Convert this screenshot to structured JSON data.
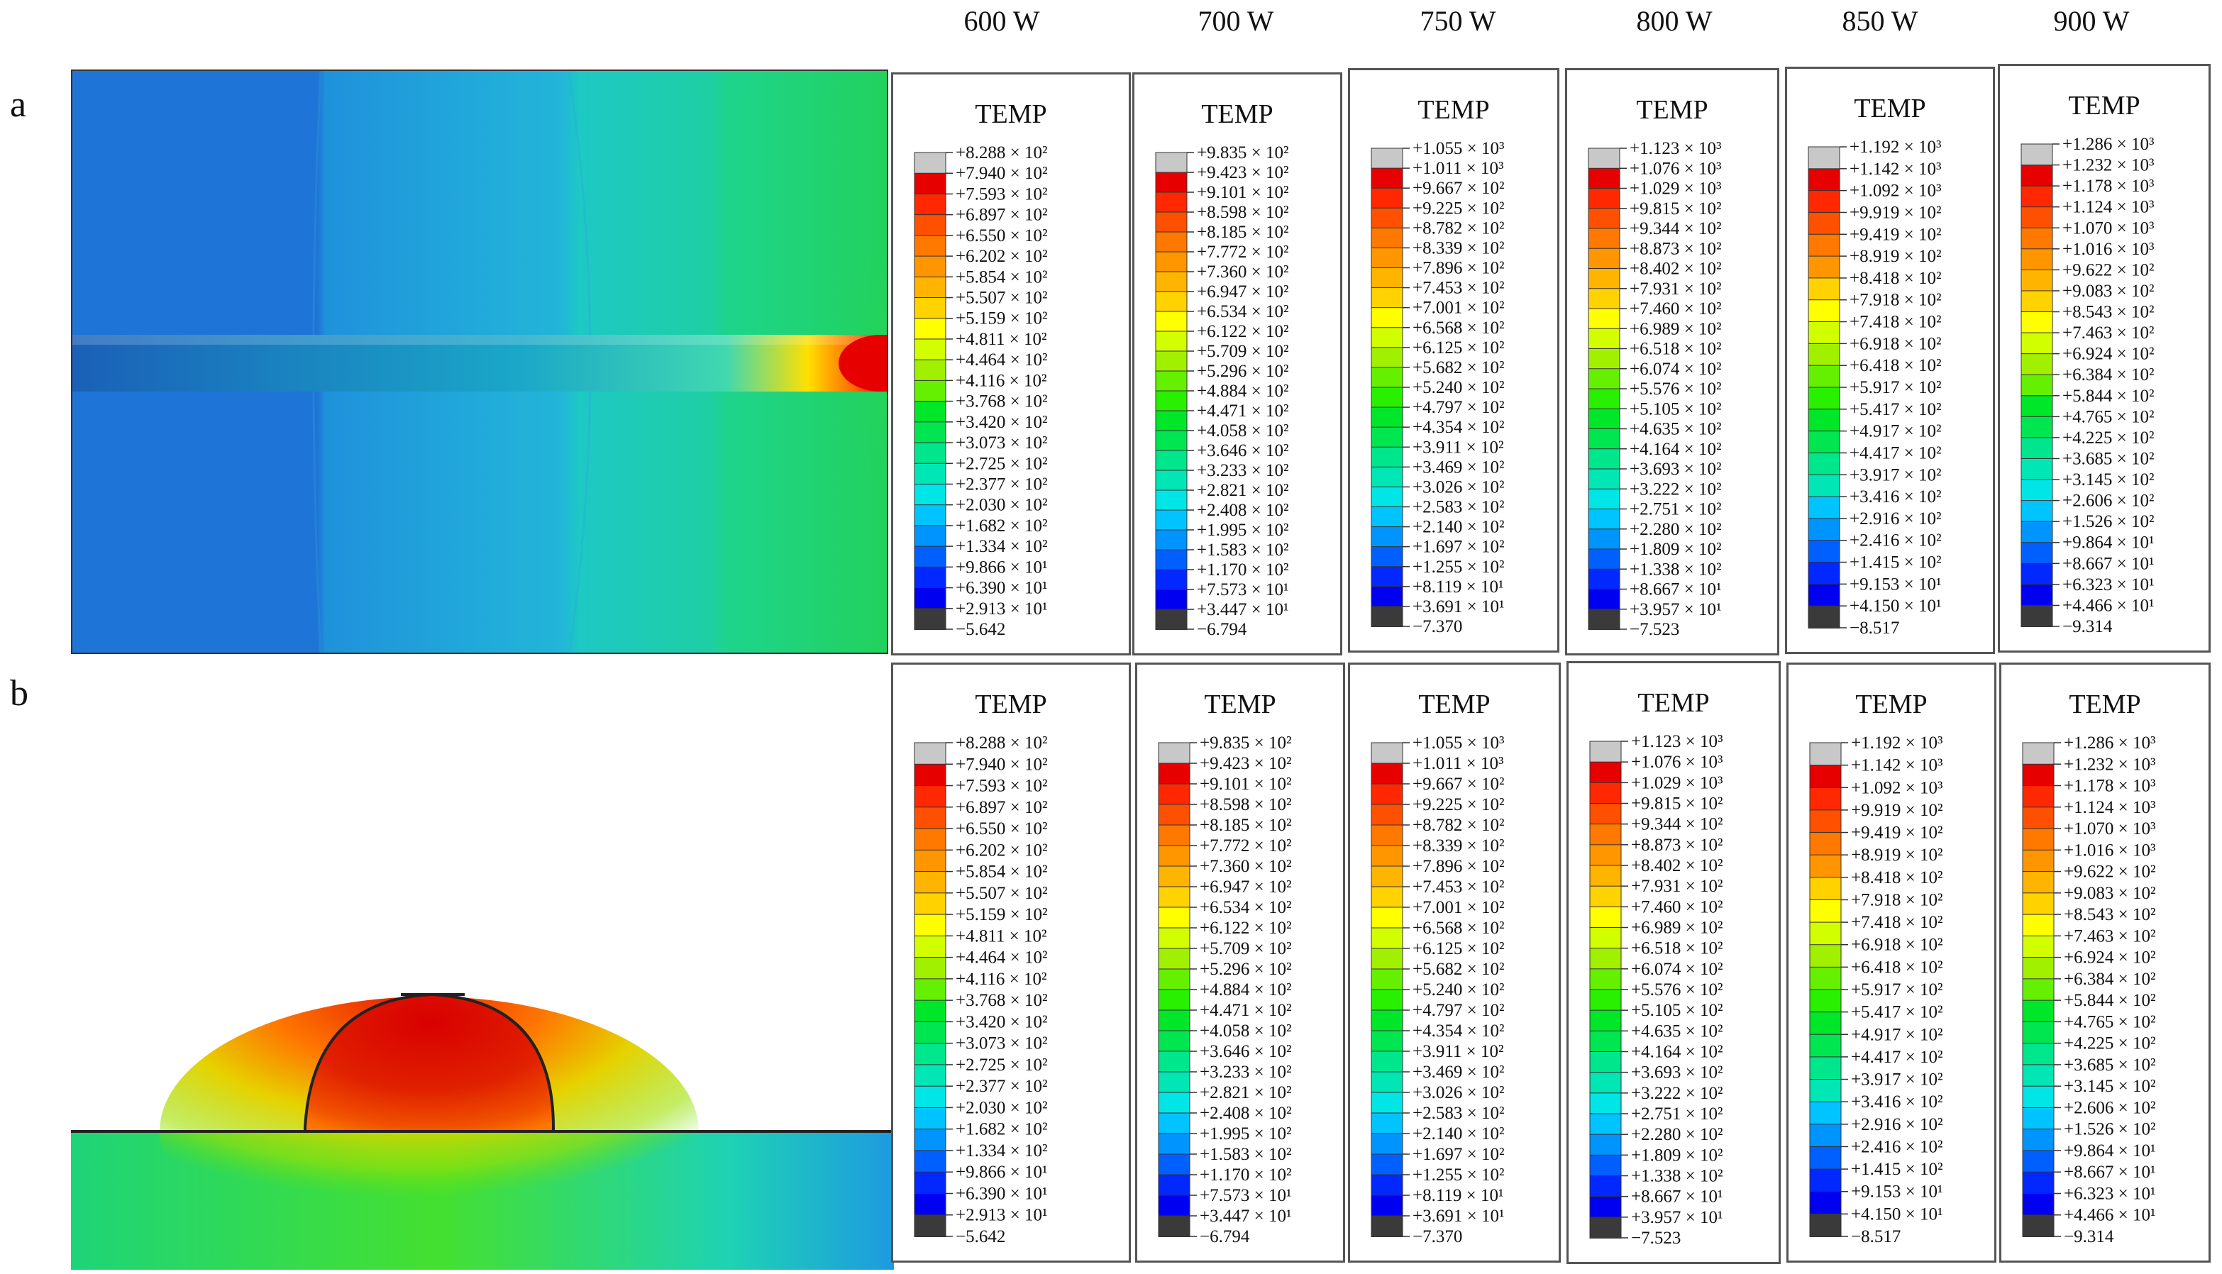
{
  "labels": {
    "row_a": "a",
    "row_b": "b"
  },
  "legend_title": "TEMP",
  "colors": [
    "#3a3a3a",
    "#0000f0",
    "#0028ff",
    "#0060ff",
    "#0094ff",
    "#00c4ff",
    "#00e6e6",
    "#00e6b4",
    "#00e68c",
    "#00e650",
    "#00e628",
    "#28f000",
    "#64f000",
    "#a0f000",
    "#d2ff00",
    "#ffff00",
    "#ffd200",
    "#ffb400",
    "#ff9600",
    "#ff7800",
    "#ff5000",
    "#ff2800",
    "#e60000",
    "#c8c8c8"
  ],
  "panels": [
    {
      "power": "600 W",
      "labels": [
        "+8.288 × 10²",
        "+7.940 × 10²",
        "+7.593 × 10²",
        "+6.897 × 10²",
        "+6.550 × 10²",
        "+6.202 × 10²",
        "+5.854 × 10²",
        "+5.507 × 10²",
        "+5.159 × 10²",
        "+4.811 × 10²",
        "+4.464 × 10²",
        "+4.116 × 10²",
        "+3.768 × 10²",
        "+3.420 × 10²",
        "+3.073 × 10²",
        "+2.725 × 10²",
        "+2.377 × 10²",
        "+2.030 × 10²",
        "+1.682 × 10²",
        "+1.334 × 10²",
        "+9.866 × 10¹",
        "+6.390 × 10¹",
        "+2.913 × 10¹",
        "−5.642"
      ]
    },
    {
      "power": "700 W",
      "labels": [
        "+9.835 × 10²",
        "+9.423 × 10²",
        "+9.101 × 10²",
        "+8.598 × 10²",
        "+8.185 × 10²",
        "+7.772 × 10²",
        "+7.360 × 10²",
        "+6.947 × 10²",
        "+6.534 × 10²",
        "+6.122 × 10²",
        "+5.709 × 10²",
        "+5.296 × 10²",
        "+4.884 × 10²",
        "+4.471 × 10²",
        "+4.058 × 10²",
        "+3.646 × 10²",
        "+3.233 × 10²",
        "+2.821 × 10²",
        "+2.408 × 10²",
        "+1.995 × 10²",
        "+1.583 × 10²",
        "+1.170 × 10²",
        "+7.573 × 10¹",
        "+3.447 × 10¹",
        "−6.794"
      ]
    },
    {
      "power": "750 W",
      "labels": [
        "+1.055 × 10³",
        "+1.011 × 10³",
        "+9.667 × 10²",
        "+9.225 × 10²",
        "+8.782 × 10²",
        "+8.339 × 10²",
        "+7.896 × 10²",
        "+7.453 × 10²",
        "+7.001 × 10²",
        "+6.568 × 10²",
        "+6.125 × 10²",
        "+5.682 × 10²",
        "+5.240 × 10²",
        "+4.797 × 10²",
        "+4.354 × 10²",
        "+3.911 × 10²",
        "+3.469 × 10²",
        "+3.026 × 10²",
        "+2.583 × 10²",
        "+2.140 × 10²",
        "+1.697 × 10²",
        "+1.255 × 10²",
        "+8.119 × 10¹",
        "+3.691 × 10¹",
        "−7.370"
      ]
    },
    {
      "power": "800 W",
      "labels": [
        "+1.123 × 10³",
        "+1.076 × 10³",
        "+1.029 × 10³",
        "+9.815 × 10²",
        "+9.344 × 10²",
        "+8.873 × 10²",
        "+8.402 × 10²",
        "+7.931 × 10²",
        "+7.460 × 10²",
        "+6.989 × 10²",
        "+6.518 × 10²",
        "+6.074 × 10²",
        "+5.576 × 10²",
        "+5.105 × 10²",
        "+4.635 × 10²",
        "+4.164 × 10²",
        "+3.693 × 10²",
        "+3.222 × 10²",
        "+2.751 × 10²",
        "+2.280 × 10²",
        "+1.809 × 10²",
        "+1.338 × 10²",
        "+8.667 × 10¹",
        "+3.957 × 10¹",
        "−7.523"
      ]
    },
    {
      "power": "850 W",
      "labels": [
        "+1.192 × 10³",
        "+1.142 × 10³",
        "+1.092 × 10³",
        "+9.919 × 10²",
        "+9.419 × 10²",
        "+8.919 × 10²",
        "+8.418 × 10²",
        "+7.918 × 10²",
        "+7.418 × 10²",
        "+6.918 × 10²",
        "+6.418 × 10²",
        "+5.917 × 10²",
        "+5.417 × 10²",
        "+4.917 × 10²",
        "+4.417 × 10²",
        "+3.917 × 10²",
        "+3.416 × 10²",
        "+2.916 × 10²",
        "+2.416 × 10²",
        "+1.415 × 10²",
        "+9.153 × 10¹",
        "+4.150 × 10¹",
        "−8.517"
      ]
    },
    {
      "power": "900 W",
      "labels": [
        "+1.286 × 10³",
        "+1.232 × 10³",
        "+1.178 × 10³",
        "+1.124 × 10³",
        "+1.070 × 10³",
        "+1.016 × 10³",
        "+9.622 × 10²",
        "+9.083 × 10²",
        "+8.543 × 10²",
        "+7.463 × 10²",
        "+6.924 × 10²",
        "+6.384 × 10²",
        "+5.844 × 10²",
        "+4.765 × 10²",
        "+4.225 × 10²",
        "+3.685 × 10²",
        "+3.145 × 10²",
        "+2.606 × 10²",
        "+1.526 × 10²",
        "+9.864 × 10¹",
        "+8.667 × 10¹",
        "+6.323 × 10¹",
        "+4.466 × 10¹",
        "−9.314"
      ]
    }
  ]
}
